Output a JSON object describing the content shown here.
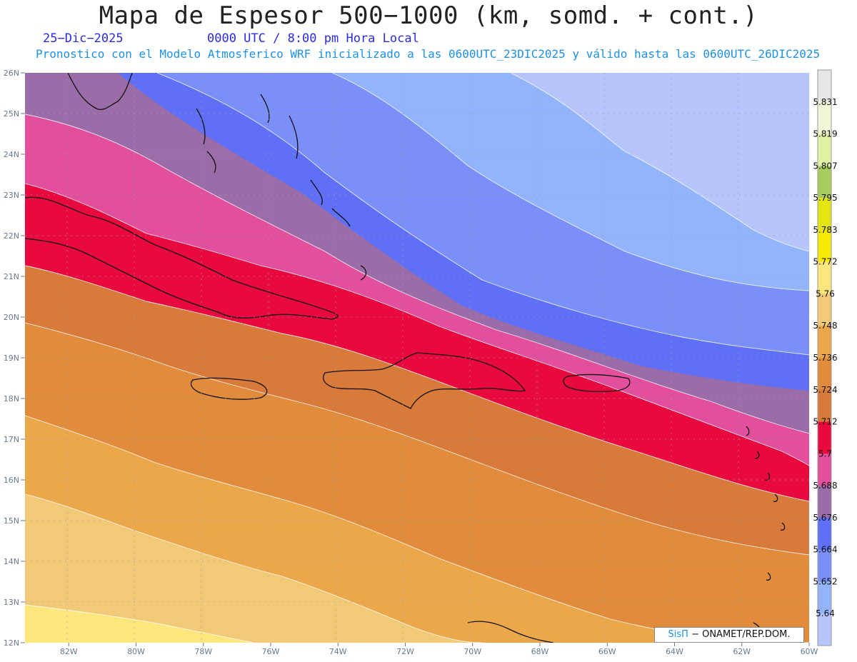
{
  "header": {
    "title": "Mapa de Espesor 500−1000 (km, somd. + cont.)",
    "date": "25−Dic−2025",
    "time": "0000 UTC / 8:00 pm Hora Local",
    "forecast": "Pronostico con el Modelo Atmosferico WRF inicializado a las 0600UTC_23DIC2025 y válido hasta las  0600UTC_26DIC2025"
  },
  "map": {
    "lat_ticks": [
      "26N",
      "25N",
      "24N",
      "23N",
      "22N",
      "21N",
      "20N",
      "19N",
      "18N",
      "17N",
      "16N",
      "15N",
      "14N",
      "13N",
      "12N"
    ],
    "lon_ticks": [
      "82W",
      "80W",
      "78W",
      "76W",
      "74W",
      "72W",
      "70W",
      "68W",
      "66W",
      "64W",
      "62W",
      "60W"
    ],
    "lon_range": [
      -83.3,
      -60.0
    ],
    "lat_range": [
      12.0,
      26.0
    ],
    "grid": true
  },
  "colorbar": {
    "labels": [
      "5.831",
      "5.819",
      "5.807",
      "5.795",
      "5.783",
      "5.772",
      "5.76",
      "5.748",
      "5.736",
      "5.724",
      "5.712",
      "5.7",
      "5.688",
      "5.676",
      "5.664",
      "5.652",
      "5.64"
    ],
    "colors": [
      "#e6e6e6",
      "#f1f6d6",
      "#e1f2a6",
      "#aacc5e",
      "#e4e413",
      "#f6eb00",
      "#fde77c",
      "#f2c977",
      "#eba84a",
      "#e08c3c",
      "#d87a3a",
      "#e8093e",
      "#e24f9c",
      "#9a6ca8",
      "#6070f6",
      "#7b8ff8",
      "#92b4fb",
      "#b6c5fc"
    ]
  },
  "credit": {
    "sis": "SisΠ",
    "text": " − ONAMET/REP.DOM."
  }
}
